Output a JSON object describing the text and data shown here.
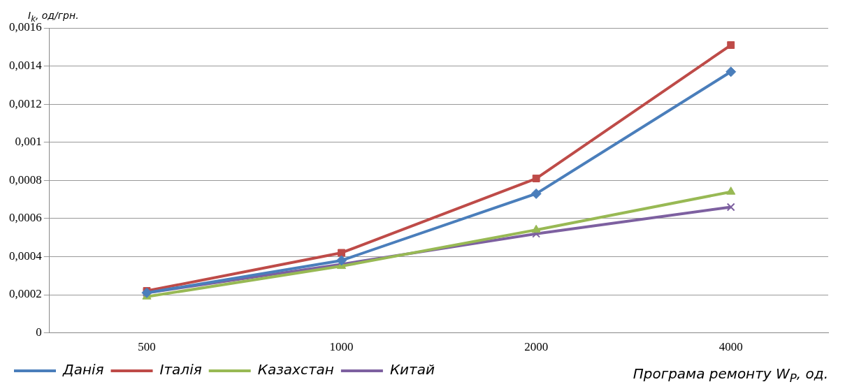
{
  "chart_data": {
    "type": "line",
    "ylabel": "I$_{k}$, од/грн.",
    "xlabel": "Програма ремонту W$_{P}$, од.",
    "categories": [
      "500",
      "1000",
      "2000",
      "4000"
    ],
    "series": [
      {
        "name": "Данія",
        "color": "#4a7ebb",
        "marker": "diamond",
        "values": [
          0.00021,
          0.00038,
          0.00073,
          0.00137
        ]
      },
      {
        "name": "Італія",
        "color": "#be4b48",
        "marker": "square",
        "values": [
          0.00022,
          0.00042,
          0.00081,
          0.00151
        ]
      },
      {
        "name": "Казахстан",
        "color": "#98b954",
        "marker": "triangle",
        "values": [
          0.00019,
          0.00035,
          0.00054,
          0.00074
        ]
      },
      {
        "name": "Китай",
        "color": "#7d60a0",
        "marker": "cross",
        "values": [
          0.00021,
          0.00036,
          0.00052,
          0.00066
        ]
      }
    ],
    "ylim": [
      0,
      0.0016
    ],
    "yticks": [
      0,
      {
        "value": 0.0002,
        "label": "0,0002"
      },
      {
        "value": 0.0004,
        "label": "0,0004"
      },
      {
        "value": 0.0006,
        "label": "0,0006"
      },
      {
        "value": 0.0008,
        "label": "0,0008"
      },
      {
        "value": 0.001,
        "label": "0,001"
      },
      {
        "value": 0.0012,
        "label": "0,0012"
      },
      {
        "value": 0.0014,
        "label": "0,0014"
      },
      {
        "value": 0.0016,
        "label": "0,0016"
      }
    ],
    "grid": "y",
    "legend": "bottom left"
  }
}
